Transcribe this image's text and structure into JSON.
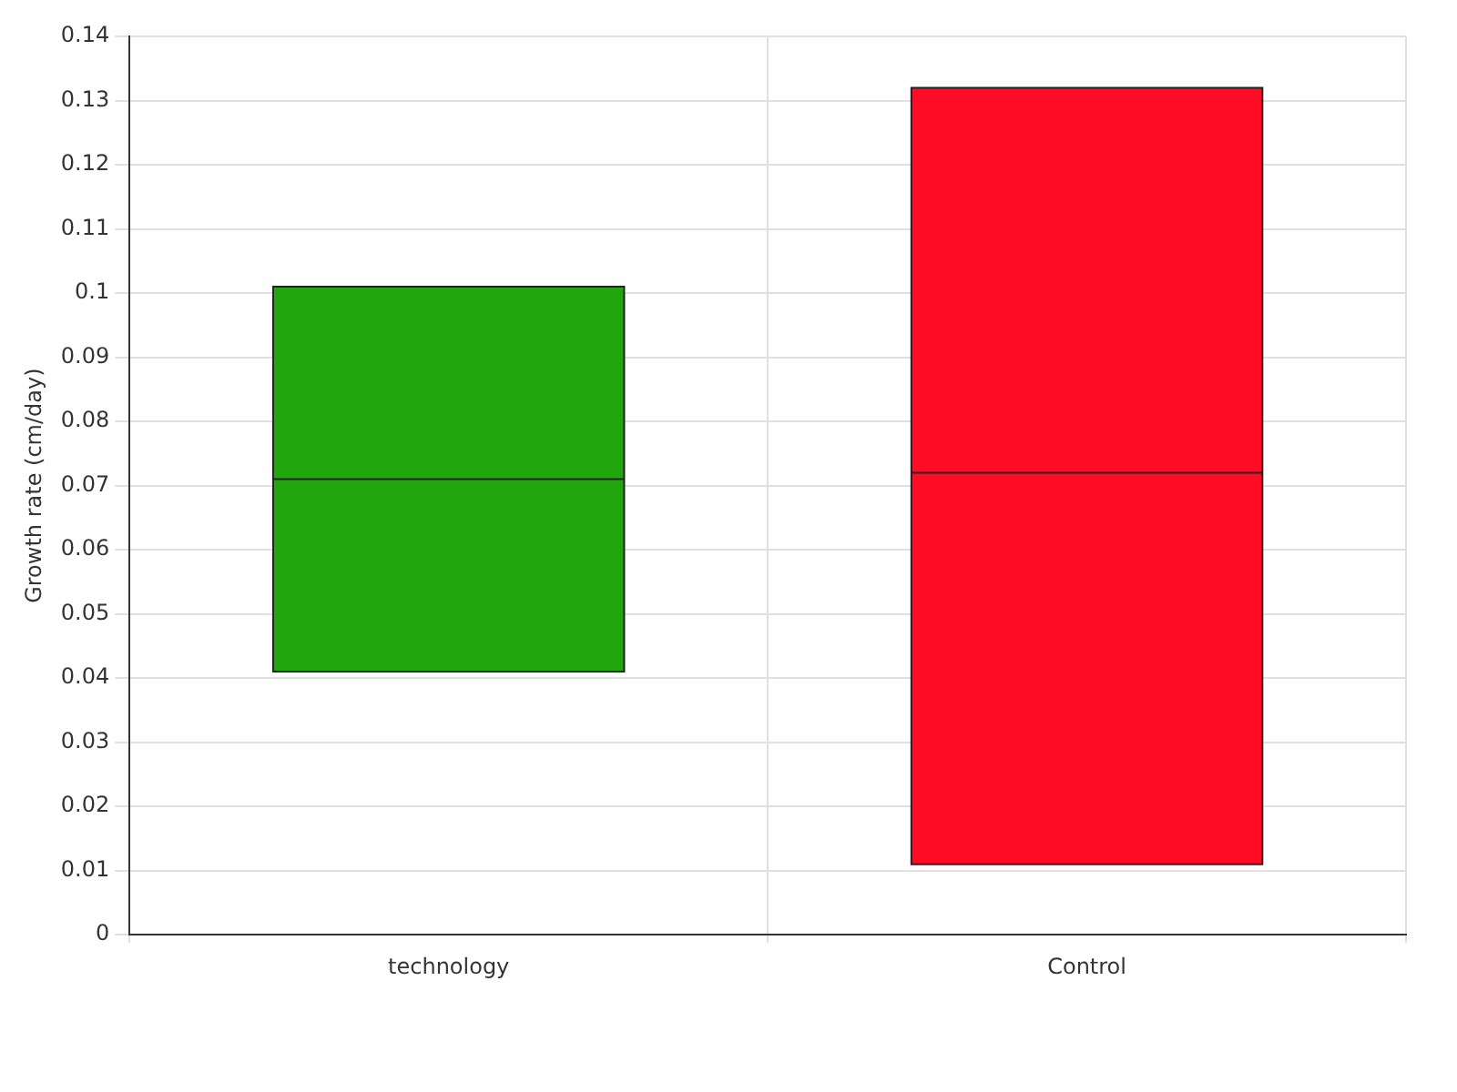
{
  "chart_data": {
    "type": "box",
    "ylabel": "Growth rate (cm/day)",
    "categories": [
      "technology",
      "Control"
    ],
    "boxes": [
      {
        "low": 0.041,
        "q1": 0.041,
        "median": 0.071,
        "q3": 0.101,
        "high": 0.101
      },
      {
        "low": 0.011,
        "q1": 0.011,
        "median": 0.072,
        "q3": 0.132,
        "high": 0.132
      }
    ],
    "colors": [
      "#22a60e",
      "#ff0d26"
    ],
    "ylim": [
      0,
      0.14
    ],
    "yticks": [
      0,
      0.01,
      0.02,
      0.03,
      0.04,
      0.05,
      0.06,
      0.07,
      0.08,
      0.09,
      0.1,
      0.11,
      0.12,
      0.13,
      0.14
    ],
    "grid": true
  }
}
